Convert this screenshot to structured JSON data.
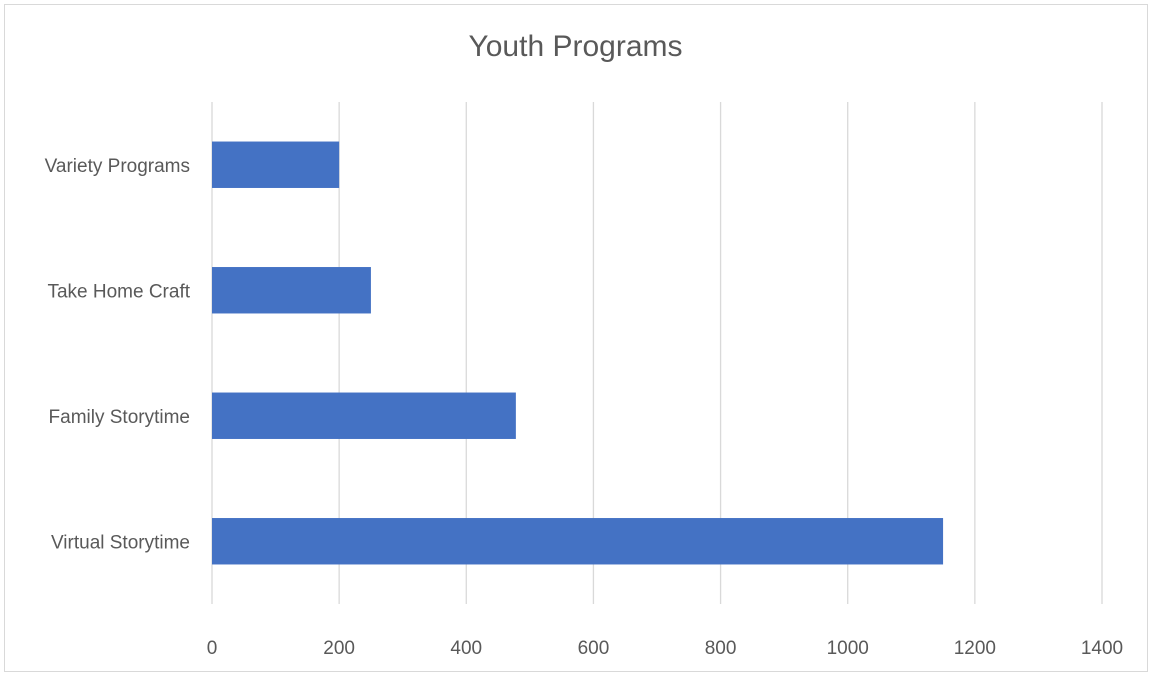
{
  "chart_data": {
    "type": "bar",
    "orientation": "horizontal",
    "title": "Youth Programs",
    "xlabel": "",
    "ylabel": "",
    "categories": [
      "Virtual Storytime",
      "Family Storytime",
      "Take Home Craft",
      "Variety Programs"
    ],
    "values": [
      1150,
      478,
      250,
      200
    ],
    "xlim": [
      0,
      1400
    ],
    "xticks": [
      0,
      200,
      400,
      600,
      800,
      1000,
      1200,
      1400
    ],
    "grid": "vertical",
    "legend": "none",
    "bar_color": "#4472C4",
    "grid_color": "#d9d9d9",
    "text_color": "#595959"
  }
}
